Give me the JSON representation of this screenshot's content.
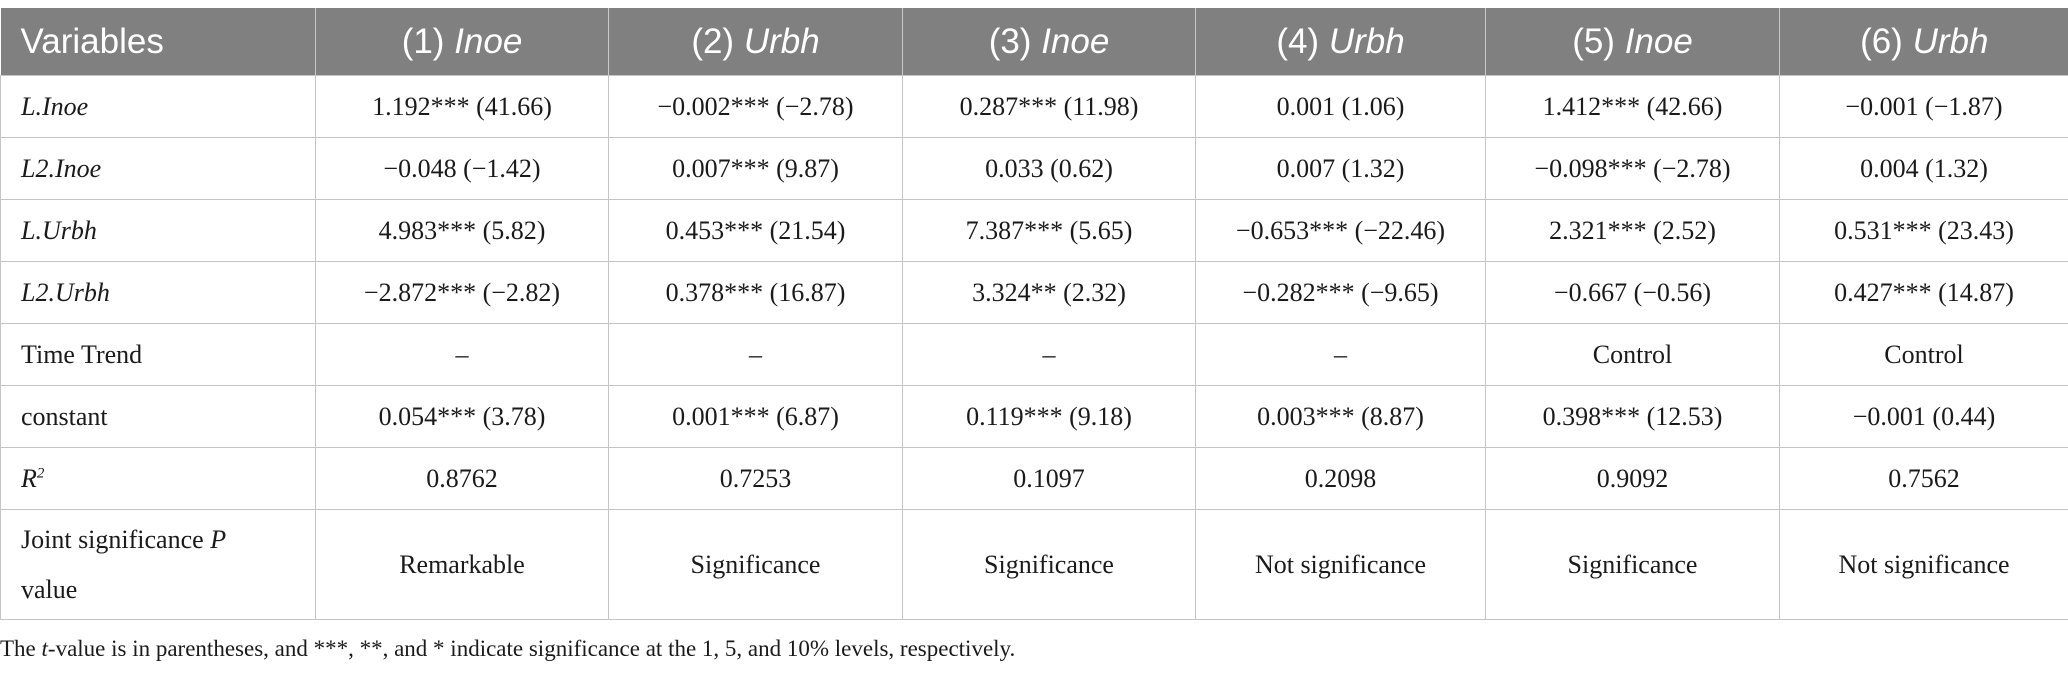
{
  "header": {
    "variables_label": "Variables",
    "columns": [
      {
        "num": "(1) ",
        "var": "Inoe"
      },
      {
        "num": "(2) ",
        "var": "Urbh"
      },
      {
        "num": "(3) ",
        "var": "Inoe"
      },
      {
        "num": "(4) ",
        "var": "Urbh"
      },
      {
        "num": "(5) ",
        "var": "Inoe"
      },
      {
        "num": "(6) ",
        "var": "Urbh"
      }
    ]
  },
  "rows": [
    {
      "label": "L.Inoe",
      "cells": [
        "1.192*** (41.66)",
        "−0.002*** (−2.78)",
        "0.287*** (11.98)",
        "0.001 (1.06)",
        "1.412*** (42.66)",
        "−0.001 (−1.87)"
      ]
    },
    {
      "label": "L2.Inoe",
      "cells": [
        "−0.048 (−1.42)",
        "0.007*** (9.87)",
        "0.033 (0.62)",
        "0.007 (1.32)",
        "−0.098*** (−2.78)",
        "0.004 (1.32)"
      ]
    },
    {
      "label": "L.Urbh",
      "cells": [
        "4.983*** (5.82)",
        "0.453*** (21.54)",
        "7.387*** (5.65)",
        "−0.653*** (−22.46)",
        "2.321*** (2.52)",
        "0.531*** (23.43)"
      ]
    },
    {
      "label": "L2.Urbh",
      "cells": [
        "−2.872*** (−2.82)",
        "0.378*** (16.87)",
        "3.324** (2.32)",
        "−0.282*** (−9.65)",
        "−0.667 (−0.56)",
        "0.427*** (14.87)"
      ]
    },
    {
      "label": "Time Trend",
      "cells": [
        "–",
        "–",
        "–",
        "–",
        "Control",
        "Control"
      ]
    },
    {
      "label": "constant",
      "cells": [
        "0.054*** (3.78)",
        "0.001*** (6.87)",
        "0.119*** (9.18)",
        "0.003*** (8.87)",
        "0.398*** (12.53)",
        "−0.001 (0.44)"
      ]
    },
    {
      "label_main": "R",
      "label_sup": "2",
      "cells": [
        "0.8762",
        "0.7253",
        "0.1097",
        "0.2098",
        "0.9092",
        "0.7562"
      ]
    },
    {
      "label_main": "Joint significance ",
      "label_ital": "P",
      "label_tail": " value",
      "cells": [
        "Remarkable",
        "Significance",
        "Significance",
        "Not significance",
        "Significance",
        "Not significance"
      ]
    }
  ],
  "footnote": {
    "pre": "The ",
    "ital": "t",
    "post": "-value is in parentheses, and ***, **, and * indicate significance at the 1, 5, and 10% levels, respectively."
  }
}
